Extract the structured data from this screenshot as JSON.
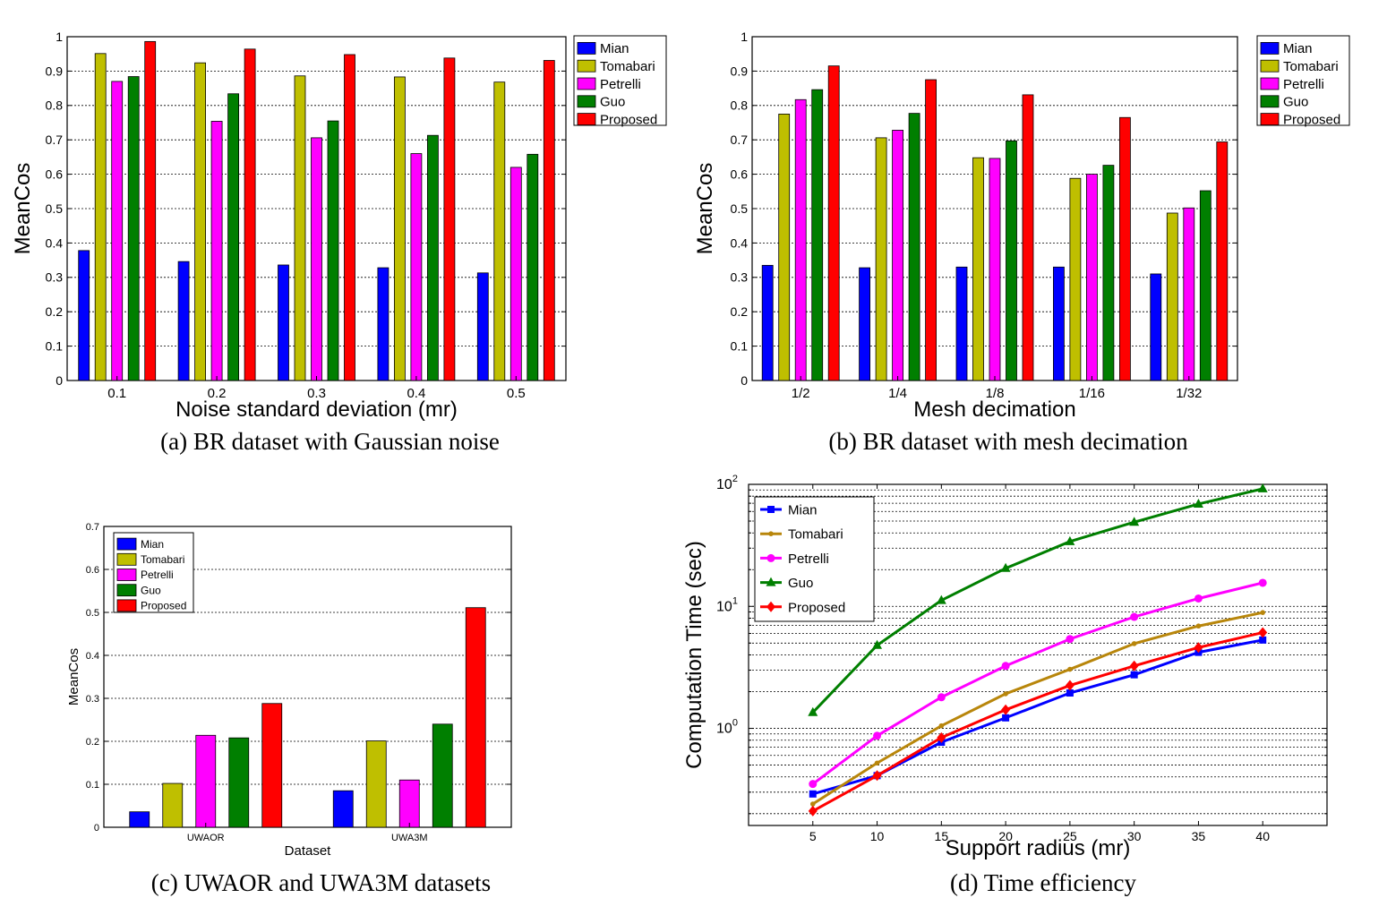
{
  "colors": {
    "Mian": "#0000ff",
    "Tomabari": "#bfbf00",
    "Petrelli": "#ff00ff",
    "Guo": "#007f00",
    "Proposed": "#ff0000",
    "Tomabari_line": "#b8860b"
  },
  "chart_data": [
    {
      "id": "a",
      "type": "bar",
      "caption": "(a) BR dataset with Gaussian noise",
      "xlabel": "Noise  standard deviation (mr)",
      "ylabel": "MeanCos",
      "ylim": [
        0,
        1
      ],
      "yticks": [
        "0",
        "0.1",
        "0.2",
        "0.3",
        "0.4",
        "0.5",
        "0.6",
        "0.7",
        "0.8",
        "0.9",
        "1"
      ],
      "grid": "horizontal dashed",
      "legend": "top-right",
      "categories": [
        "0.1",
        "0.2",
        "0.3",
        "0.4",
        "0.5"
      ],
      "series": [
        {
          "name": "Mian",
          "values": [
            0.378,
            0.346,
            0.336,
            0.328,
            0.313
          ]
        },
        {
          "name": "Tomabari",
          "values": [
            0.951,
            0.924,
            0.886,
            0.883,
            0.868
          ]
        },
        {
          "name": "Petrelli",
          "values": [
            0.87,
            0.754,
            0.706,
            0.66,
            0.62
          ]
        },
        {
          "name": "Guo",
          "values": [
            0.884,
            0.834,
            0.755,
            0.713,
            0.658
          ]
        },
        {
          "name": "Proposed",
          "values": [
            0.986,
            0.964,
            0.948,
            0.938,
            0.931
          ]
        }
      ]
    },
    {
      "id": "b",
      "type": "bar",
      "caption": "(b) BR dataset with mesh decimation",
      "xlabel": "Mesh decimation",
      "ylabel": "MeanCos",
      "ylim": [
        0,
        1
      ],
      "yticks": [
        "0",
        "0.1",
        "0.2",
        "0.3",
        "0.4",
        "0.5",
        "0.6",
        "0.7",
        "0.8",
        "0.9",
        "1"
      ],
      "grid": "horizontal dashed",
      "legend": "top-right",
      "categories": [
        "1/2",
        "1/4",
        "1/8",
        "1/16",
        "1/32"
      ],
      "series": [
        {
          "name": "Mian",
          "values": [
            0.335,
            0.328,
            0.33,
            0.33,
            0.31
          ]
        },
        {
          "name": "Tomabari",
          "values": [
            0.775,
            0.706,
            0.648,
            0.588,
            0.487
          ]
        },
        {
          "name": "Petrelli",
          "values": [
            0.817,
            0.728,
            0.646,
            0.6,
            0.502
          ]
        },
        {
          "name": "Guo",
          "values": [
            0.846,
            0.777,
            0.697,
            0.626,
            0.552
          ]
        },
        {
          "name": "Proposed",
          "values": [
            0.915,
            0.875,
            0.831,
            0.765,
            0.694
          ]
        }
      ]
    },
    {
      "id": "c",
      "type": "bar",
      "caption": "(c) UWAOR and UWA3M datasets",
      "xlabel": "Dataset",
      "ylabel": "MeanCos",
      "ylim": [
        0,
        0.7
      ],
      "yticks": [
        "0",
        "0.1",
        "0.2",
        "0.3",
        "0.4",
        "0.5",
        "0.6",
        "0.7"
      ],
      "grid": "horizontal dashed",
      "legend": "top-left",
      "categories": [
        "UWAOR",
        "UWA3M"
      ],
      "series": [
        {
          "name": "Mian",
          "values": [
            0.036,
            0.085
          ]
        },
        {
          "name": "Tomabari",
          "values": [
            0.102,
            0.201
          ]
        },
        {
          "name": "Petrelli",
          "values": [
            0.214,
            0.11
          ]
        },
        {
          "name": "Guo",
          "values": [
            0.208,
            0.24
          ]
        },
        {
          "name": "Proposed",
          "values": [
            0.288,
            0.511
          ]
        }
      ]
    },
    {
      "id": "d",
      "type": "line",
      "caption": "(d) Time efficiency",
      "xlabel": "Support radius (mr)",
      "ylabel": "Computation Time (sec)",
      "yscale": "log",
      "ylim": [
        0.16,
        100
      ],
      "xlim": [
        0,
        45
      ],
      "x": [
        5,
        10,
        15,
        20,
        25,
        30,
        35,
        40
      ],
      "xticks": [
        "5",
        "10",
        "15",
        "20",
        "25",
        "30",
        "35",
        "40"
      ],
      "yticks": [
        {
          "base": "10",
          "exp": "0"
        },
        {
          "base": "10",
          "exp": "1"
        },
        {
          "base": "10",
          "exp": "2"
        }
      ],
      "grid": "horizontal dashed (major and minor)",
      "legend": "top-left",
      "series": [
        {
          "name": "Mian",
          "marker": "square",
          "values": [
            0.29,
            0.41,
            0.77,
            1.22,
            1.95,
            2.75,
            4.2,
            5.3
          ]
        },
        {
          "name": "Tomabari",
          "marker": "star",
          "values": [
            0.24,
            0.52,
            1.05,
            1.92,
            3.05,
            4.95,
            6.9,
            8.9
          ]
        },
        {
          "name": "Petrelli",
          "marker": "circle",
          "values": [
            0.35,
            0.87,
            1.8,
            3.25,
            5.4,
            8.2,
            11.6,
            15.6
          ]
        },
        {
          "name": "Guo",
          "marker": "triangle",
          "values": [
            1.35,
            4.8,
            11.2,
            20.5,
            34,
            49,
            69,
            92
          ]
        },
        {
          "name": "Proposed",
          "marker": "diamond",
          "values": [
            0.21,
            0.41,
            0.84,
            1.42,
            2.25,
            3.25,
            4.6,
            6.1
          ]
        }
      ]
    }
  ]
}
